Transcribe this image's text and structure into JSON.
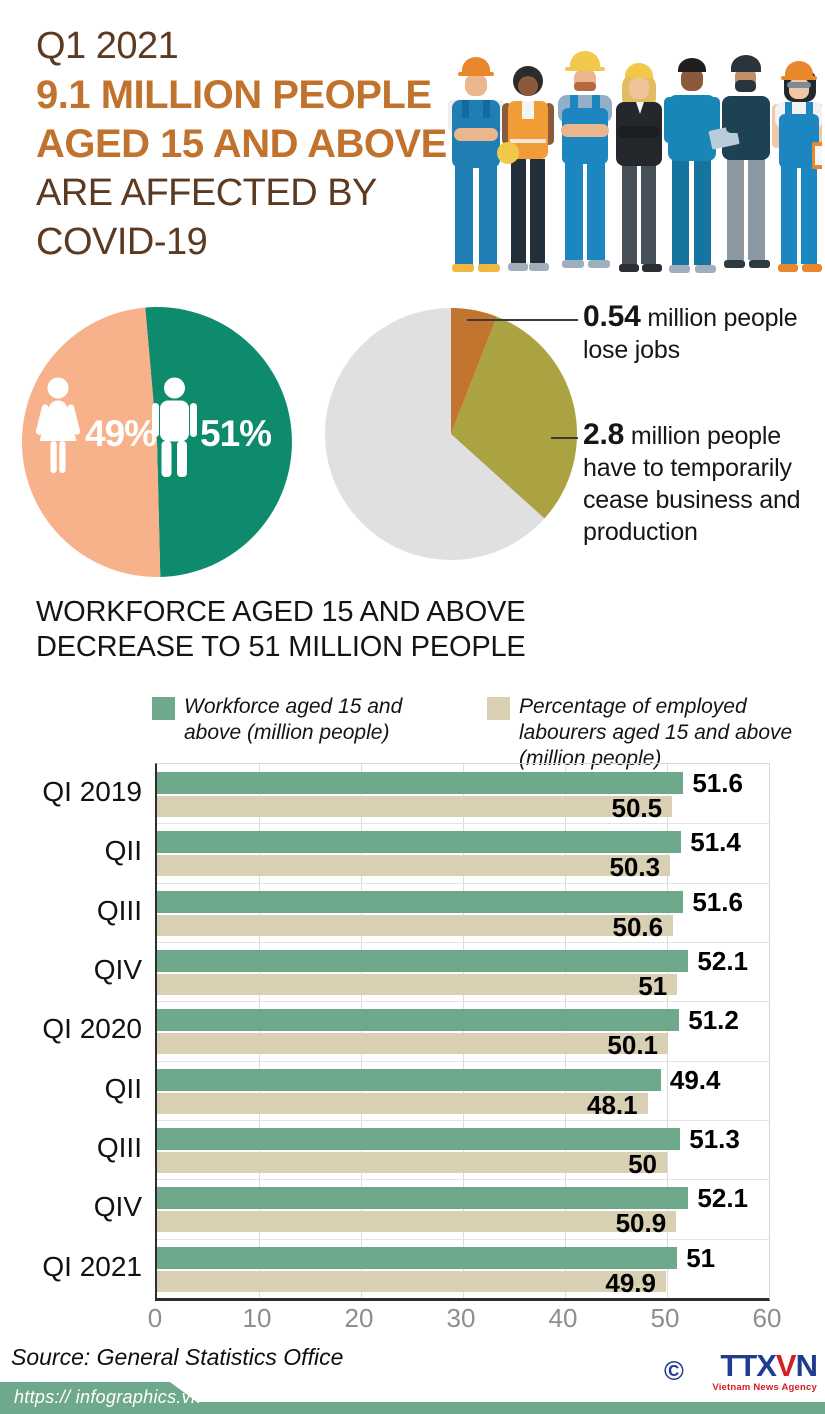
{
  "palette": {
    "title_brown": "#5C3A21",
    "title_orange": "#C1732E",
    "footer_green": "#6FA98C",
    "logo_blue": "#1F3C8F",
    "logo_red": "#D22027"
  },
  "header": {
    "line1": "Q1 2021",
    "line2_bold": "9.1 MILLION PEOPLE",
    "line3_bold": "AGED 15 AND ABOVE",
    "line4": "ARE AFFECTED BY",
    "line5": "COVID-19"
  },
  "impact_annotations": [
    {
      "number": "0.54",
      "line1": " million people",
      "line2": "lose jobs"
    },
    {
      "number": "2.8",
      "line1": " million people",
      "line2": "have to temporarily",
      "line3": "cease business and",
      "line4": "production"
    }
  ],
  "bar_section": {
    "title_line1": "WORKFORCE AGED 15 AND ABOVE",
    "title_line2": "DECREASE TO 51 MILLION PEOPLE",
    "legend": [
      {
        "lines": [
          "Workforce aged 15 and",
          "above (million people)"
        ]
      },
      {
        "lines": [
          "Percentage of employed",
          "labourers aged 15 and above",
          "(million people)"
        ]
      }
    ]
  },
  "footer": {
    "source": "Source: General Statistics Office",
    "url": "https:// infographics.vn",
    "copyright": "©",
    "logo_ttx": "TTX",
    "logo_v": "V",
    "logo_n": "N",
    "logo_subtext": "Vietnam News Agency"
  },
  "chart_data": [
    {
      "type": "pie",
      "name": "workforce-by-gender",
      "start_angle": -5,
      "slices": [
        {
          "label": "male",
          "value": 51,
          "display": "51%",
          "color": "#0E8A6C"
        },
        {
          "label": "female",
          "value": 49,
          "display": "49%",
          "color": "#F7B28C"
        }
      ]
    },
    {
      "type": "pie",
      "name": "covid-19-impact",
      "unit": "million people",
      "start_angle": 0,
      "slices": [
        {
          "label": "0.54 million people lose jobs",
          "value": 0.54,
          "color": "#C2752F"
        },
        {
          "label": "2.8 million people have to temporarily cease business and production",
          "value": 2.8,
          "color": "#ABA341"
        },
        {
          "label": "",
          "value": 5.76,
          "color": "#E0E0E2"
        }
      ]
    },
    {
      "type": "bar",
      "orientation": "horizontal",
      "title": "WORKFORCE AGED 15 AND ABOVE DECREASE TO 51 MILLION PEOPLE",
      "categories": [
        "QI 2019",
        "QII",
        "QIII",
        "QIV",
        "QI 2020",
        "QII",
        "QIII",
        "QIV",
        "QI 2021"
      ],
      "series": [
        {
          "name": "Workforce aged 15 and above (million people)",
          "color": "#6FA98C",
          "values": [
            51.6,
            51.4,
            51.6,
            52.1,
            51.2,
            49.4,
            51.3,
            52.1,
            51
          ]
        },
        {
          "name": "Percentage of employed labourers aged 15 and above (million people)",
          "color": "#D9CFB3",
          "values": [
            50.5,
            50.3,
            50.6,
            51,
            50.1,
            48.1,
            50,
            50.9,
            49.9
          ]
        }
      ],
      "xlim": [
        0,
        60
      ],
      "xticks": [
        0,
        10,
        20,
        30,
        40,
        50,
        60
      ],
      "grid": true,
      "legend_position": "top"
    }
  ]
}
